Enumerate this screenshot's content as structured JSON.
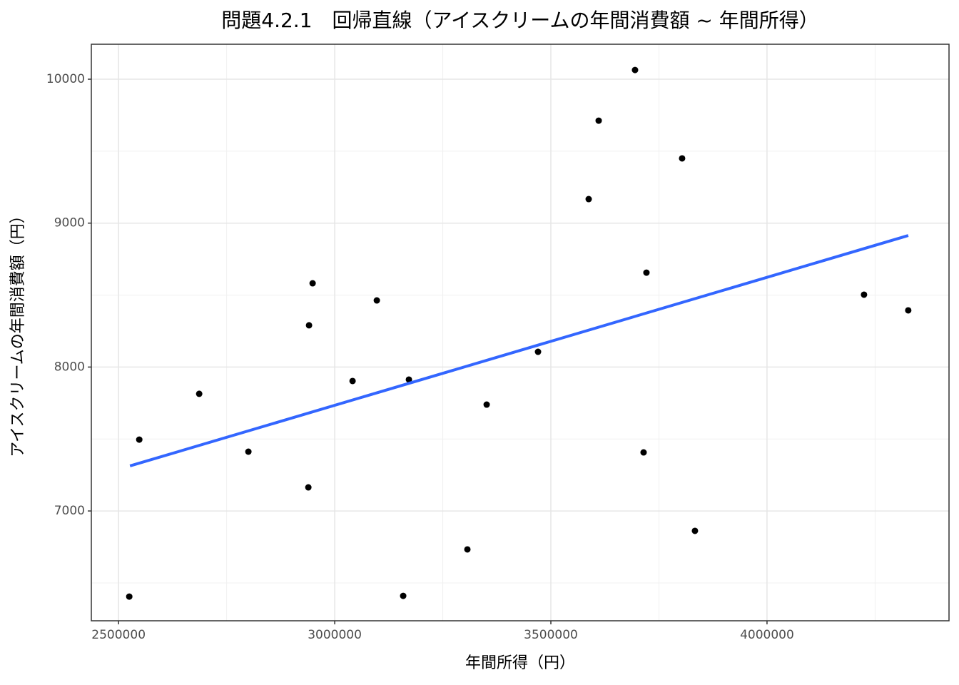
{
  "chart_data": {
    "type": "scatter",
    "title": "問題4.2.1　回帰直線（アイスクリームの年間消費額 ~ 年間所得）",
    "x_label": "年間所得（円）",
    "y_label": "アイスクリームの年間消費額（円）",
    "x": [
      2524750,
      2547900,
      2686500,
      2800300,
      2939000,
      2940600,
      2948900,
      3041300,
      3097400,
      3158400,
      3171600,
      3306900,
      3351500,
      3470300,
      3587500,
      3610600,
      3694700,
      3714500,
      3721100,
      3803600,
      3833300,
      4224400,
      4326700
    ],
    "values": [
      6405,
      7496,
      7814,
      7412,
      7164,
      8290,
      8582,
      7903,
      8463,
      6410,
      7913,
      6733,
      7739,
      8106,
      9167,
      9712,
      10064,
      7407,
      8656,
      9450,
      6862,
      8503,
      8394
    ],
    "color": "#000000",
    "fit": {
      "x": [
        2526400,
        4326700
      ],
      "values": [
        7313,
        8914
      ],
      "color": "#3366ff"
    },
    "xlim": [
      2437000,
      4421000
    ],
    "ylim": [
      6237,
      10243
    ],
    "xticks": [
      2500000,
      3000000,
      3500000,
      4000000
    ],
    "yticks": [
      7000,
      8000,
      9000,
      10000
    ],
    "x_minor_grid": [
      2750000,
      3250000,
      3750000,
      4250000
    ],
    "y_minor_grid": [
      6500,
      7500,
      8500,
      9500
    ],
    "grid": true
  }
}
